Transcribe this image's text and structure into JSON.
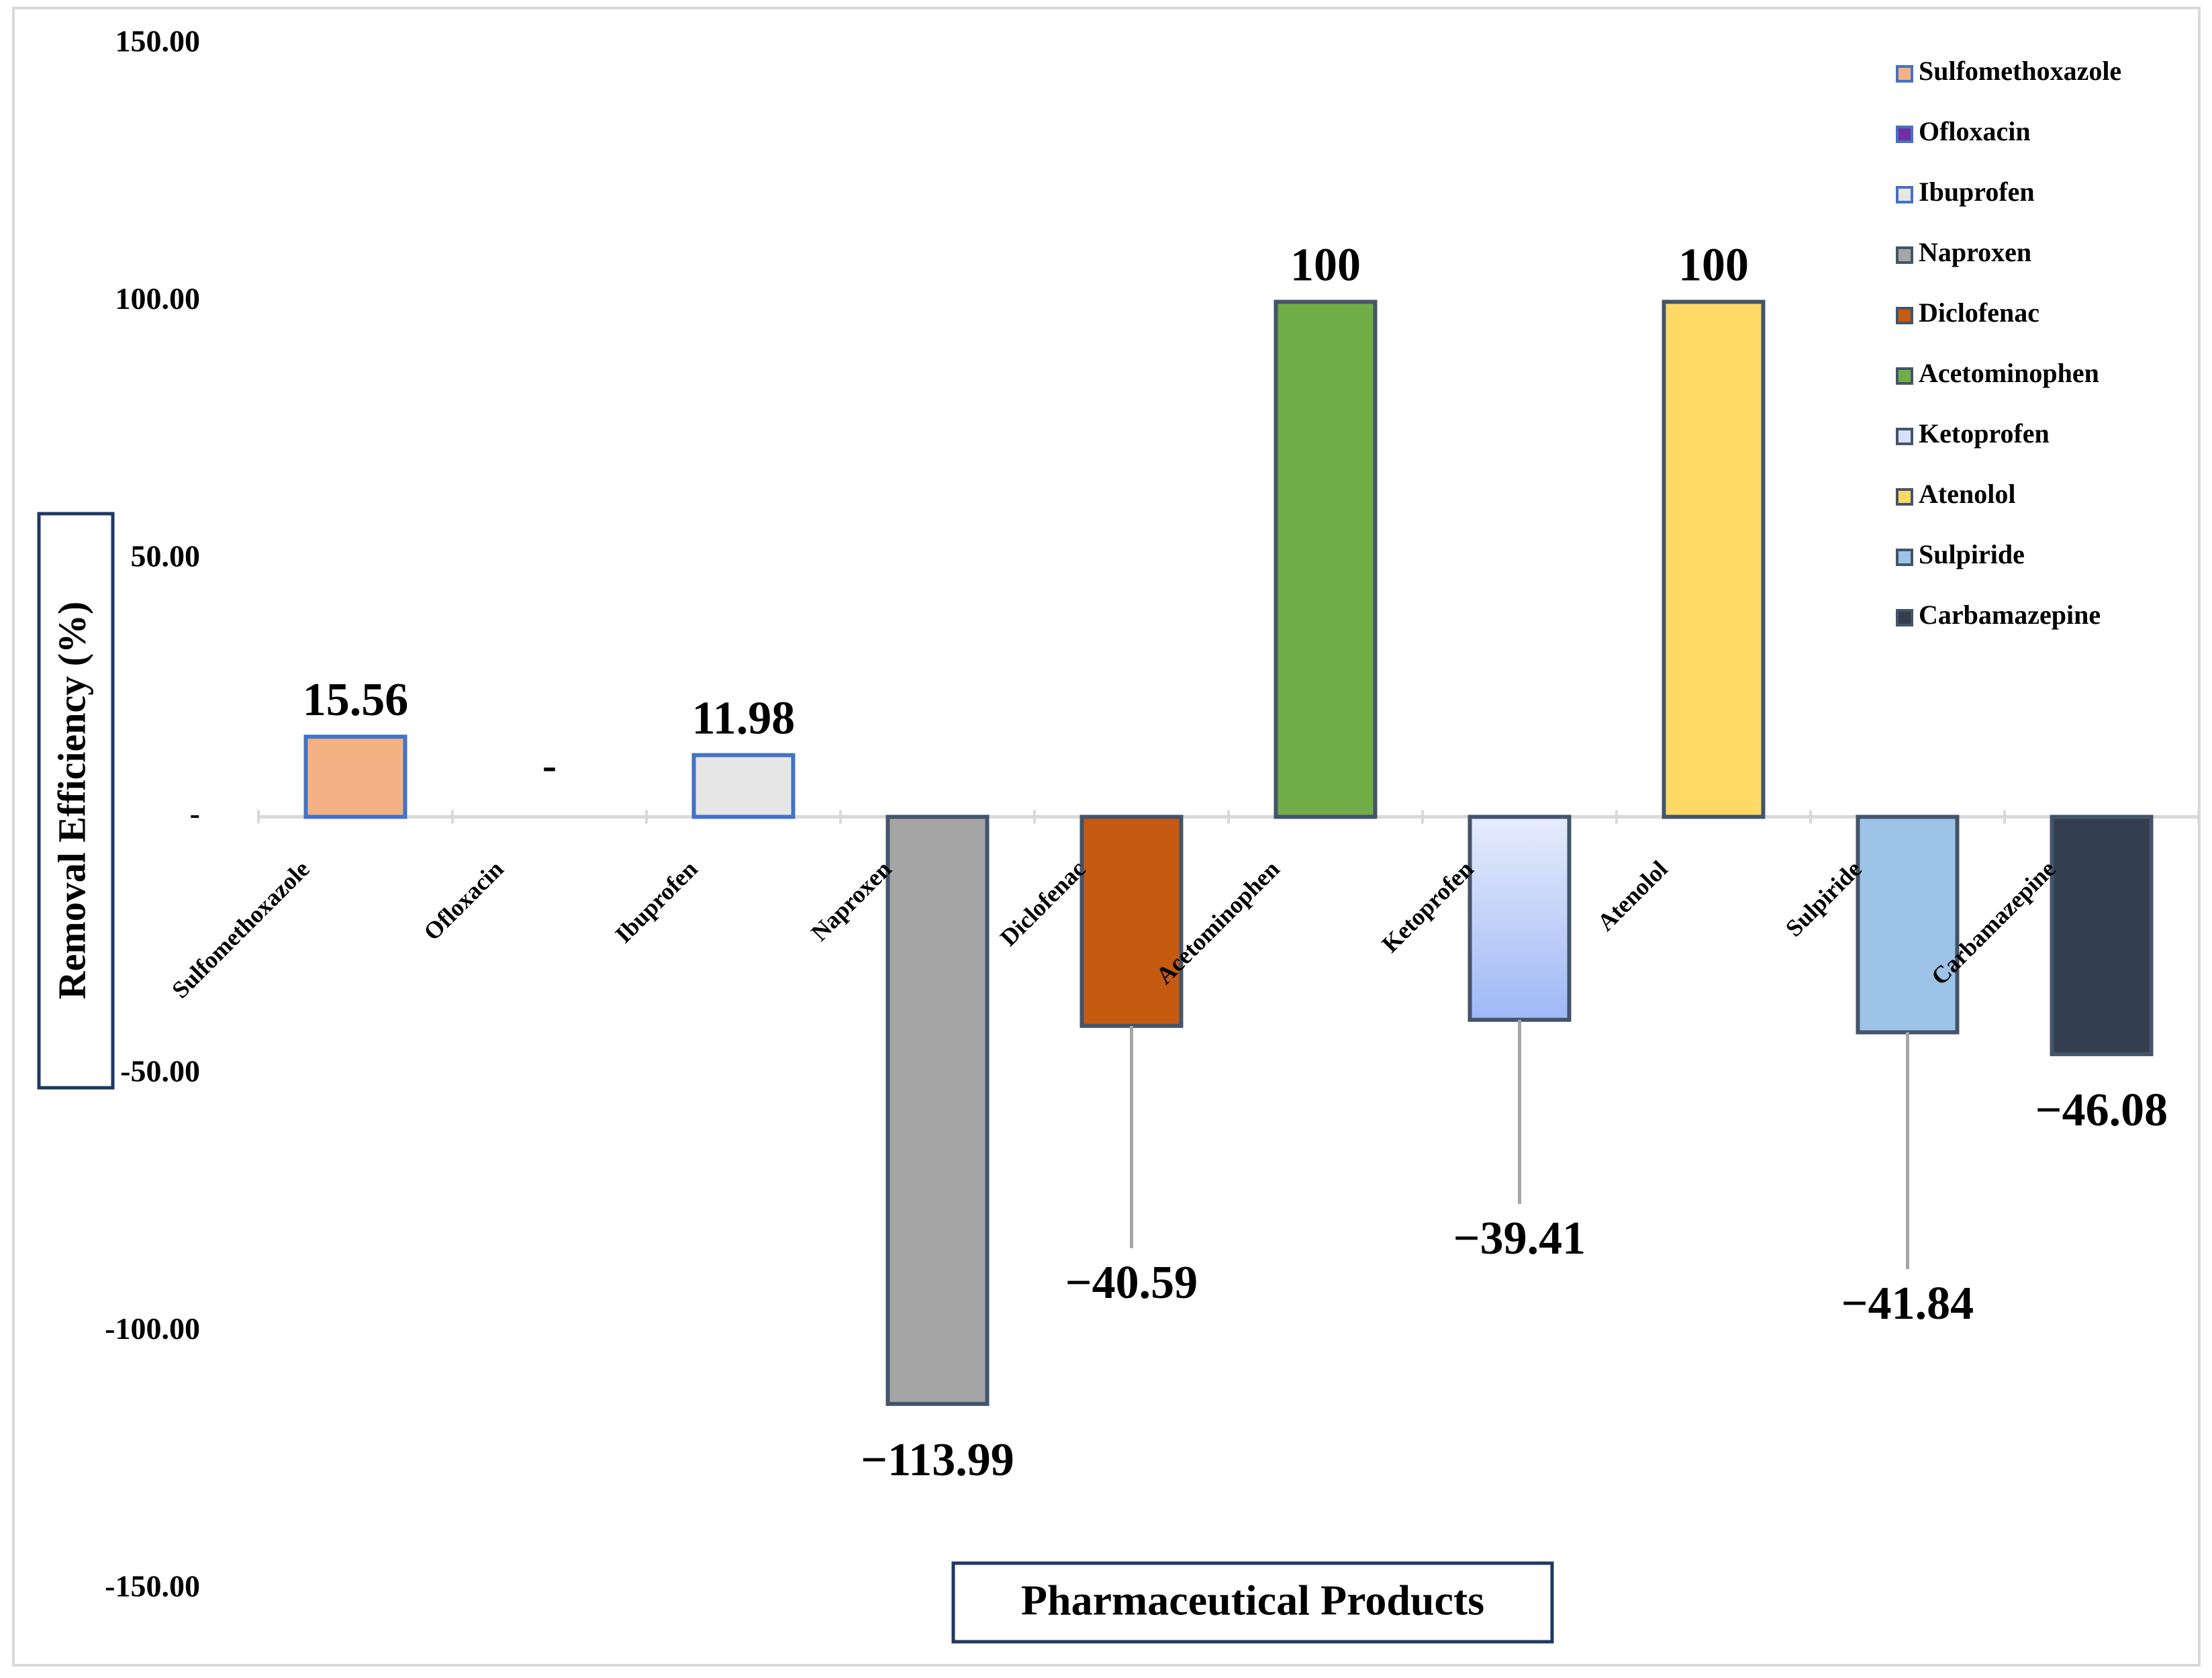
{
  "chart_data": {
    "type": "bar",
    "title": "",
    "xlabel": "Pharmaceutical Products",
    "ylabel": "Removal Efficiency (%)",
    "ylim": [
      -150,
      150
    ],
    "y_ticks": [
      150,
      100,
      50,
      0,
      -50,
      -100,
      -150
    ],
    "y_tick_labels": [
      "150.00",
      "100.00",
      "50.00",
      "-",
      "-50.00",
      "-100.00",
      "-150.00"
    ],
    "grid": false,
    "legend_position": "top-right",
    "categories": [
      "Sulfomethoxazole",
      "Ofloxacin",
      "Ibuprofen",
      "Naproxen",
      "Diclofenac",
      "Acetominophen",
      "Ketoprofen",
      "Atenolol",
      "Sulpiride",
      "Carbamazepine"
    ],
    "values": [
      15.56,
      0,
      11.98,
      -113.99,
      -40.59,
      100,
      -39.41,
      100,
      -41.84,
      -46.08
    ],
    "data_labels": [
      "15.56",
      "-",
      "11.98",
      "−113.99",
      "−40.59",
      "100",
      "−39.41",
      "100",
      "−41.84",
      "−46.08"
    ],
    "bar_colors": [
      "#f4b183",
      "#7030a0",
      "#e7e6e6",
      "#a5a5a5",
      "#c55a11",
      "#70ad47",
      "#b4c7e7",
      "#ffd966",
      "#9dc3e6",
      "#333f50"
    ],
    "bar_borders": [
      "#4472c4",
      "#4472c4",
      "#4472c4",
      "#44546a",
      "#44546a",
      "#44546a",
      "#44546a",
      "#44546a",
      "#44546a",
      "#44546a"
    ],
    "legend": [
      "Sulfomethoxazole",
      "Ofloxacin",
      "Ibuprofen",
      "Naproxen",
      "Diclofenac",
      "Acetominophen",
      "Ketoprofen",
      "Atenolol",
      "Sulpiride",
      "Carbamazepine"
    ]
  }
}
